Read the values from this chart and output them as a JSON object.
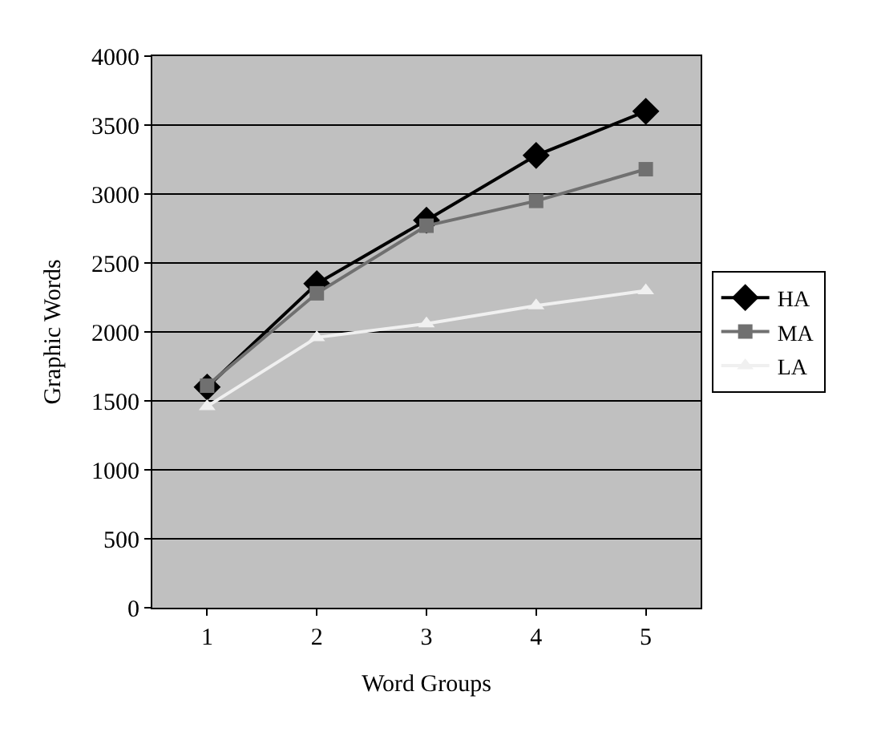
{
  "chart_data": {
    "type": "line",
    "xlabel": "Word Groups",
    "ylabel": "Graphic Words",
    "categories": [
      "1",
      "2",
      "3",
      "4",
      "5"
    ],
    "series": [
      {
        "name": "HA",
        "color": "#000000",
        "marker": "diamond",
        "values": [
          1600,
          2350,
          2810,
          3280,
          3600
        ]
      },
      {
        "name": "MA",
        "color": "#707070",
        "marker": "square",
        "values": [
          1610,
          2280,
          2770,
          2950,
          3180
        ]
      },
      {
        "name": "LA",
        "color": "#f0f0f0",
        "marker": "triangle",
        "values": [
          1460,
          1960,
          2060,
          2190,
          2300
        ]
      }
    ],
    "ylim": [
      0,
      4000
    ],
    "yticks": [
      0,
      500,
      1000,
      1500,
      2000,
      2500,
      3000,
      3500,
      4000
    ],
    "grid": "y",
    "legend": "right",
    "line_style": "solid"
  }
}
